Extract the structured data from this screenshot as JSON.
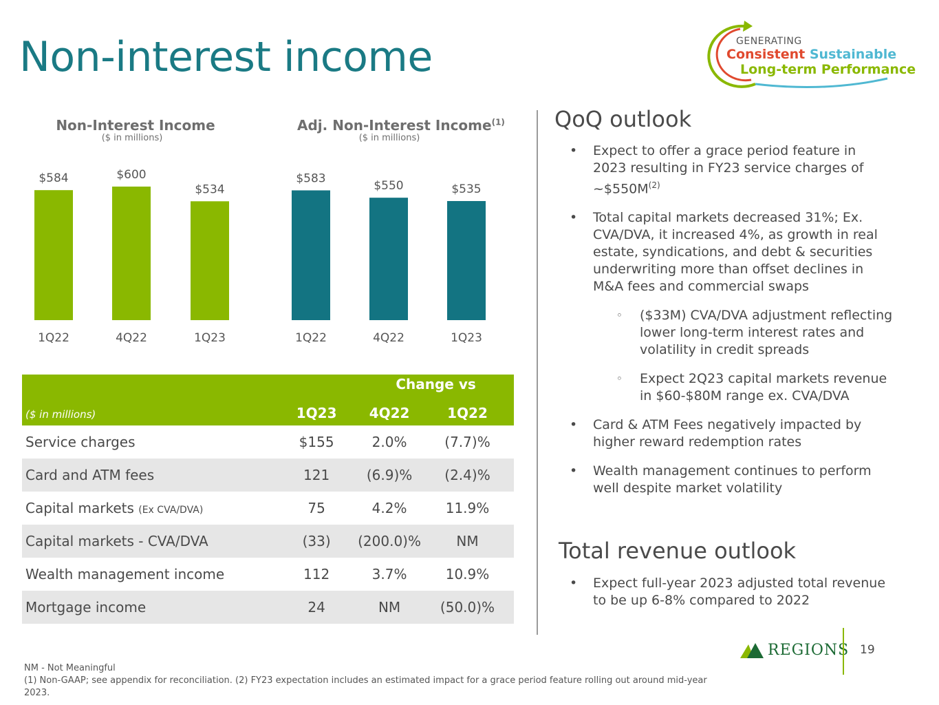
{
  "page": {
    "title": "Non-interest income",
    "page_number": "19"
  },
  "logo": {
    "line1": "GENERATING",
    "word_consistent": "Consistent",
    "word_sustainable": "Sustainable",
    "line3": "Long-term Performance"
  },
  "brand": {
    "name": "Regions",
    "wordmark": "REGIONS"
  },
  "colors": {
    "title": "#1a7a84",
    "green": "#8ab800",
    "teal": "#137482",
    "text": "#4a4a4a"
  },
  "chart_data": [
    {
      "type": "bar",
      "title": "Non-Interest Income",
      "subtitle": "($ in millions)",
      "categories": [
        "1Q22",
        "4Q22",
        "1Q23"
      ],
      "values": [
        584,
        600,
        534
      ],
      "value_labels": [
        "$584",
        "$600",
        "$534"
      ],
      "color": "#8ab800",
      "ylim": [
        0,
        600
      ]
    },
    {
      "type": "bar",
      "title": "Adj. Non-Interest Income",
      "title_note": "(1)",
      "subtitle": "($ in millions)",
      "categories": [
        "1Q22",
        "4Q22",
        "1Q23"
      ],
      "values": [
        583,
        550,
        535
      ],
      "value_labels": [
        "$583",
        "$550",
        "$535"
      ],
      "color": "#137482",
      "ylim": [
        0,
        600
      ]
    }
  ],
  "table": {
    "unit_label": "($ in millions)",
    "change_header": "Change vs",
    "columns": [
      "1Q23",
      "4Q22",
      "1Q22"
    ],
    "rows": [
      {
        "label": "Service charges",
        "label_suffix": "",
        "values": [
          "$155",
          "2.0%",
          "(7.7)%"
        ]
      },
      {
        "label": "Card and ATM fees",
        "label_suffix": "",
        "values": [
          "121",
          "(6.9)%",
          "(2.4)%"
        ]
      },
      {
        "label": "Capital markets",
        "label_suffix": "(Ex CVA/DVA)",
        "values": [
          "75",
          "4.2%",
          "11.9%"
        ]
      },
      {
        "label": "Capital markets - CVA/DVA",
        "label_suffix": "",
        "values": [
          "(33)",
          "(200.0)%",
          "NM"
        ]
      },
      {
        "label": "Wealth management income",
        "label_suffix": "",
        "values": [
          "112",
          "3.7%",
          "10.9%"
        ]
      },
      {
        "label": "Mortgage income",
        "label_suffix": "",
        "values": [
          "24",
          "NM",
          "(50.0)%"
        ]
      }
    ]
  },
  "qoq": {
    "heading": "QoQ outlook",
    "b1_text": "Expect to offer a grace period feature in 2023 resulting in FY23 service charges of ~$550M",
    "b1_sup": "(2)",
    "b2": "Total capital markets decreased 31%; Ex. CVA/DVA, it increased 4%, as growth in real estate, syndications, and debt & securities underwriting more than offset declines in M&A fees and commercial swaps",
    "b2_sub1": "($33M) CVA/DVA adjustment reflecting lower long-term interest rates and volatility in credit spreads",
    "b2_sub2": "Expect 2Q23 capital markets revenue in $60-$80M range ex. CVA/DVA",
    "b3": "Card & ATM Fees negatively impacted by higher reward redemption rates",
    "b4": "Wealth management continues to perform well despite market volatility"
  },
  "revenue": {
    "heading": "Total revenue outlook",
    "b1": "Expect full-year 2023 adjusted total revenue to be up 6-8% compared to 2022"
  },
  "footnotes": {
    "nm": "NM - Not Meaningful",
    "notes": "(1)  Non-GAAP; see appendix for reconciliation. (2) FY23 expectation includes an estimated impact for a grace period feature rolling out around mid-year 2023."
  }
}
